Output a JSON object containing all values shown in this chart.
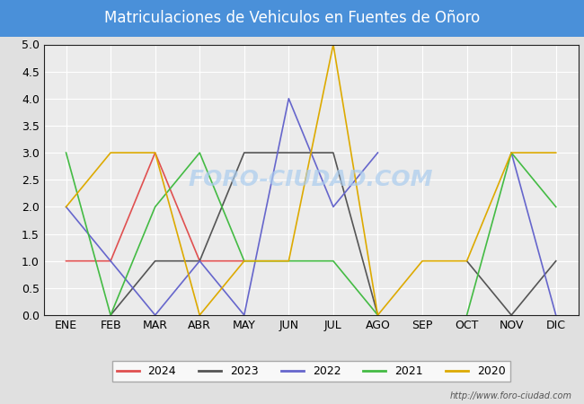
{
  "title": "Matriculaciones de Vehiculos en Fuentes de Oñoro",
  "title_bg_color": "#4a90d9",
  "title_text_color": "#ffffff",
  "months": [
    "ENE",
    "FEB",
    "MAR",
    "ABR",
    "MAY",
    "JUN",
    "JUL",
    "AGO",
    "SEP",
    "OCT",
    "NOV",
    "DIC"
  ],
  "ylim": [
    0.0,
    5.0
  ],
  "yticks": [
    0.0,
    0.5,
    1.0,
    1.5,
    2.0,
    2.5,
    3.0,
    3.5,
    4.0,
    4.5,
    5.0
  ],
  "series": {
    "2024": {
      "color": "#e05050",
      "data": [
        1,
        1,
        3,
        1,
        1,
        null,
        null,
        null,
        null,
        null,
        null,
        null
      ]
    },
    "2023": {
      "color": "#555555",
      "data": [
        null,
        0,
        1,
        1,
        3,
        3,
        3,
        0,
        null,
        1,
        0,
        1
      ]
    },
    "2022": {
      "color": "#6666cc",
      "data": [
        2,
        1,
        0,
        1,
        0,
        4,
        2,
        3,
        null,
        null,
        3,
        0
      ]
    },
    "2021": {
      "color": "#44bb44",
      "data": [
        3,
        0,
        2,
        3,
        1,
        1,
        1,
        0,
        null,
        0,
        3,
        2
      ]
    },
    "2020": {
      "color": "#ddaa00",
      "data": [
        2,
        3,
        3,
        0,
        1,
        1,
        5,
        0,
        1,
        1,
        3,
        3
      ]
    }
  },
  "legend_order": [
    "2024",
    "2023",
    "2022",
    "2021",
    "2020"
  ],
  "watermark": "FORO-CIUDAD.COM",
  "watermark_color": "#aaccee",
  "url_text": "http://www.foro-ciudad.com",
  "bg_color": "#e0e0e0",
  "plot_bg_color": "#ebebeb",
  "grid_color": "#ffffff",
  "axis_label_fontsize": 9,
  "title_fontsize": 12
}
